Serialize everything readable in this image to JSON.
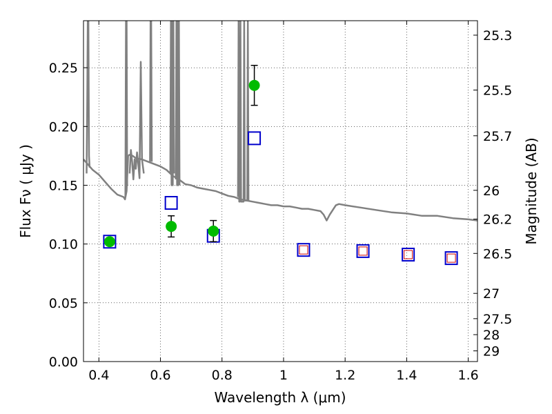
{
  "chart_data": {
    "type": "scatter",
    "xlabel": "Wavelength  λ (μm)",
    "ylabel": "Flux  Fν  ( μJy )",
    "ylabel_right": "Magnitude (AB)",
    "xlim": [
      0.35,
      1.63
    ],
    "ylim": [
      0.0,
      0.29
    ],
    "grid": true,
    "x_ticks": [
      0.4,
      0.6,
      0.8,
      1.0,
      1.2,
      1.4,
      1.6
    ],
    "x_tick_labels": [
      "0.4",
      "0.6",
      "0.8",
      "1",
      "1.2",
      "1.4",
      "1.6"
    ],
    "y_ticks": [
      0.0,
      0.05,
      0.1,
      0.15,
      0.2,
      0.25
    ],
    "y_tick_labels": [
      "0.00",
      "0.05",
      "0.10",
      "0.15",
      "0.20",
      "0.25"
    ],
    "mag_ticks": [
      {
        "label": "25.3",
        "flux": 0.2777
      },
      {
        "label": "25.5",
        "flux": 0.231
      },
      {
        "label": "25.7",
        "flux": 0.1921
      },
      {
        "label": "26",
        "flux": 0.1457
      },
      {
        "label": "26.2",
        "flux": 0.1212
      },
      {
        "label": "26.5",
        "flux": 0.092
      },
      {
        "label": "27",
        "flux": 0.058
      },
      {
        "label": "27.5",
        "flux": 0.0365
      },
      {
        "label": "28",
        "flux": 0.0229
      },
      {
        "label": "29",
        "flux": 0.0091
      }
    ],
    "series": [
      {
        "kind": "line",
        "color": "#808080",
        "points": [
          [
            0.35,
            0.172
          ],
          [
            0.37,
            0.166
          ],
          [
            0.38,
            0.163
          ],
          [
            0.4,
            0.159
          ],
          [
            0.42,
            0.153
          ],
          [
            0.44,
            0.147
          ],
          [
            0.46,
            0.142
          ],
          [
            0.48,
            0.14
          ],
          [
            0.485,
            0.138
          ],
          [
            0.49,
            0.145
          ],
          [
            0.495,
            0.175
          ],
          [
            0.5,
            0.176
          ],
          [
            0.51,
            0.175
          ],
          [
            0.52,
            0.173
          ],
          [
            0.54,
            0.172
          ],
          [
            0.56,
            0.17
          ],
          [
            0.58,
            0.168
          ],
          [
            0.6,
            0.166
          ],
          [
            0.62,
            0.163
          ],
          [
            0.64,
            0.158
          ],
          [
            0.66,
            0.155
          ],
          [
            0.68,
            0.151
          ],
          [
            0.7,
            0.15
          ],
          [
            0.72,
            0.148
          ],
          [
            0.74,
            0.147
          ],
          [
            0.76,
            0.146
          ],
          [
            0.78,
            0.145
          ],
          [
            0.8,
            0.143
          ],
          [
            0.82,
            0.141
          ],
          [
            0.84,
            0.14
          ],
          [
            0.86,
            0.138
          ],
          [
            0.88,
            0.137
          ],
          [
            0.9,
            0.136
          ],
          [
            0.92,
            0.135
          ],
          [
            0.94,
            0.134
          ],
          [
            0.96,
            0.133
          ],
          [
            0.98,
            0.133
          ],
          [
            1.0,
            0.132
          ],
          [
            1.02,
            0.132
          ],
          [
            1.04,
            0.131
          ],
          [
            1.06,
            0.13
          ],
          [
            1.08,
            0.13
          ],
          [
            1.1,
            0.129
          ],
          [
            1.12,
            0.128
          ],
          [
            1.13,
            0.125
          ],
          [
            1.14,
            0.12
          ],
          [
            1.15,
            0.125
          ],
          [
            1.16,
            0.129
          ],
          [
            1.17,
            0.133
          ],
          [
            1.18,
            0.134
          ],
          [
            1.2,
            0.133
          ],
          [
            1.25,
            0.131
          ],
          [
            1.3,
            0.129
          ],
          [
            1.35,
            0.127
          ],
          [
            1.4,
            0.126
          ],
          [
            1.45,
            0.124
          ],
          [
            1.5,
            0.124
          ],
          [
            1.55,
            0.122
          ],
          [
            1.6,
            0.121
          ],
          [
            1.63,
            0.12
          ]
        ]
      },
      {
        "kind": "line",
        "color": "#808080",
        "points": [
          [
            0.36,
            0.16
          ],
          [
            0.362,
            0.22
          ],
          [
            0.364,
            0.29
          ],
          [
            0.366,
            0.29
          ],
          [
            0.368,
            0.175
          ],
          [
            0.37,
            0.165
          ]
        ]
      },
      {
        "kind": "line",
        "color": "#808080",
        "points": [
          [
            0.486,
            0.14
          ],
          [
            0.488,
            0.29
          ],
          [
            0.49,
            0.29
          ],
          [
            0.492,
            0.15
          ]
        ]
      },
      {
        "kind": "line",
        "color": "#808080",
        "points": [
          [
            0.5,
            0.16
          ],
          [
            0.504,
            0.18
          ],
          [
            0.508,
            0.17
          ],
          [
            0.512,
            0.155
          ],
          [
            0.516,
            0.172
          ],
          [
            0.52,
            0.164
          ],
          [
            0.524,
            0.178
          ],
          [
            0.528,
            0.168
          ],
          [
            0.532,
            0.156
          ],
          [
            0.536,
            0.255
          ],
          [
            0.54,
            0.172
          ],
          [
            0.546,
            0.16
          ]
        ]
      },
      {
        "kind": "line",
        "color": "#808080",
        "points": [
          [
            0.566,
            0.17
          ],
          [
            0.568,
            0.29
          ],
          [
            0.57,
            0.29
          ],
          [
            0.572,
            0.17
          ]
        ]
      },
      {
        "kind": "line",
        "color": "#808080",
        "points": [
          [
            0.632,
            0.16
          ],
          [
            0.634,
            0.29
          ],
          [
            0.636,
            0.15
          ],
          [
            0.638,
            0.29
          ],
          [
            0.64,
            0.15
          ],
          [
            0.642,
            0.29
          ],
          [
            0.644,
            0.16
          ]
        ]
      },
      {
        "kind": "line",
        "color": "#808080",
        "points": [
          [
            0.65,
            0.155
          ],
          [
            0.652,
            0.29
          ],
          [
            0.654,
            0.15
          ],
          [
            0.656,
            0.29
          ],
          [
            0.658,
            0.15
          ],
          [
            0.66,
            0.29
          ],
          [
            0.662,
            0.15
          ]
        ]
      },
      {
        "kind": "line",
        "color": "#808080",
        "points": [
          [
            0.852,
            0.14
          ],
          [
            0.854,
            0.29
          ],
          [
            0.856,
            0.136
          ],
          [
            0.858,
            0.136
          ],
          [
            0.86,
            0.29
          ],
          [
            0.862,
            0.136
          ],
          [
            0.87,
            0.136
          ],
          [
            0.872,
            0.29
          ],
          [
            0.874,
            0.137
          ],
          [
            0.882,
            0.137
          ],
          [
            0.884,
            0.29
          ],
          [
            0.886,
            0.137
          ]
        ]
      },
      {
        "kind": "markers",
        "marker": "square-open",
        "color": "#0000cc",
        "points": [
          [
            0.435,
            0.102
          ],
          [
            0.635,
            0.135
          ],
          [
            0.772,
            0.107
          ],
          [
            0.905,
            0.19
          ],
          [
            1.065,
            0.095
          ],
          [
            1.258,
            0.094
          ],
          [
            1.405,
            0.091
          ],
          [
            1.545,
            0.088
          ]
        ]
      },
      {
        "kind": "markers",
        "marker": "square-open-small",
        "color": "#cc0000",
        "points": [
          [
            1.065,
            0.095
          ],
          [
            1.258,
            0.094
          ],
          [
            1.405,
            0.091
          ],
          [
            1.545,
            0.088
          ]
        ]
      },
      {
        "kind": "markers",
        "marker": "circle-filled",
        "color": "#00bb00",
        "points": [
          [
            0.435,
            0.102
          ],
          [
            0.635,
            0.115
          ],
          [
            0.772,
            0.111
          ],
          [
            0.905,
            0.235
          ]
        ],
        "errors": [
          0.0,
          0.009,
          0.009,
          0.017
        ]
      }
    ]
  }
}
